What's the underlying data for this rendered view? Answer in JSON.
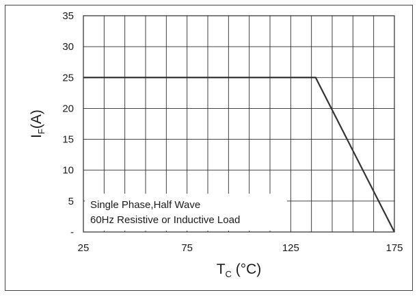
{
  "chart_data": {
    "type": "line",
    "x": [
      25,
      137,
      175
    ],
    "series": [
      {
        "values": [
          25,
          25,
          0
        ]
      }
    ],
    "xlim": [
      25,
      175
    ],
    "ylim": [
      0,
      35
    ],
    "x_ticks": [
      25,
      75,
      125,
      175
    ],
    "y_ticks": [
      0,
      5,
      10,
      15,
      20,
      25,
      30,
      35
    ],
    "y_tick_labels": [
      "-",
      "5",
      "10",
      "15",
      "20",
      "25",
      "30",
      "35"
    ],
    "grid": true,
    "xlabel": {
      "main": "T",
      "sub": "C",
      "unit": " (°C)"
    },
    "ylabel": {
      "main": "I",
      "sub": "F",
      "unit": "(A)"
    },
    "annotation_lines": [
      "Single  Phase,Half Wave",
      "60Hz  Resistive or Inductive Load"
    ],
    "line_color": "#333333",
    "grid_color": "#2a2a2a"
  }
}
